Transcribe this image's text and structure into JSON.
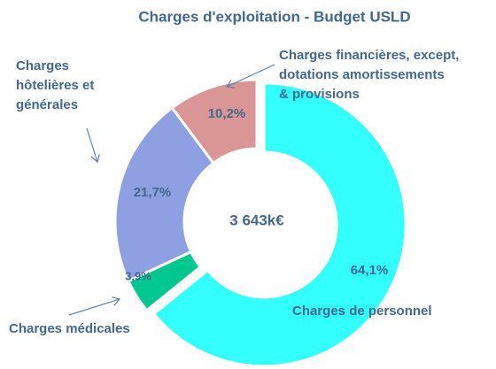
{
  "chart_data": {
    "type": "donut",
    "title": "Charges d'exploitation - Budget USLD",
    "center_label": "3 643k€",
    "categories": [
      "Charges de personnel",
      "Charges médicales",
      "Charges\nhôtelières et\ngénérales",
      "Charges financières, except,\ndotations amortissements\n& provisions"
    ],
    "values": [
      64.1,
      3.9,
      21.7,
      10.2
    ],
    "value_labels": [
      "64,1%",
      "3,9%",
      "21,7%",
      "10,2%"
    ],
    "colors": [
      "#33ffff",
      "#00c890",
      "#8e9fe2",
      "#d99694"
    ]
  }
}
